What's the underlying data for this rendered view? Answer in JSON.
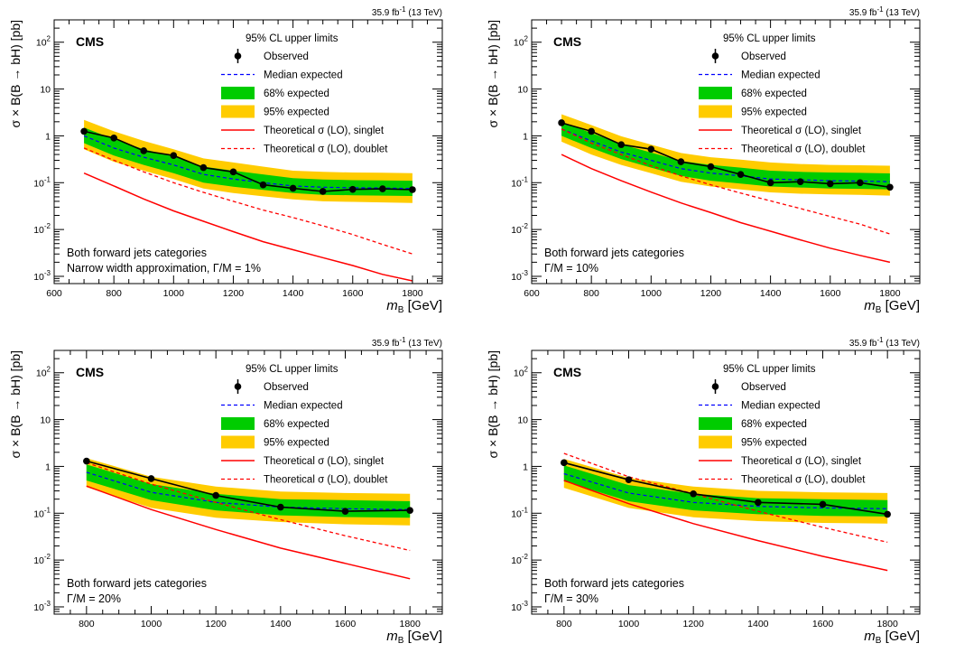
{
  "legend_style": {
    "band95_color": "#ffcc00",
    "band68_color": "#00cc00",
    "median_color": "#0000ff",
    "theory_color": "#ff0000",
    "observed_color": "#000000"
  },
  "chart_data": [
    {
      "type": "line",
      "lumi_label": "35.9 fb",
      "lumi_sup": "-1",
      "energy_label": " (13 TeV)",
      "experiment": "CMS",
      "legend_title": "95% CL upper limits",
      "legend": {
        "observed": "Observed",
        "median": "Median expected",
        "band68": "68% expected",
        "band95": "95% expected",
        "singlet": "Theoretical σ (LO), singlet",
        "doublet": "Theoretical σ (LO), doublet"
      },
      "ylabel": "σ × B(B → bH) [pb]",
      "xlabel_main": "m",
      "xlabel_sub": "B",
      "xlabel_unit": " [GeV]",
      "category_text": "Both forward jets categories",
      "width_text": "Narrow width approximation, Γ/M = 1%",
      "xlim": [
        600,
        1900
      ],
      "ylim": [
        0.0007,
        300
      ],
      "yscale": "log",
      "x_ticks": [
        600,
        800,
        1000,
        1200,
        1400,
        1600,
        1800
      ],
      "y_ticks": [
        {
          "v": 0.001,
          "b": "10",
          "e": "-3"
        },
        {
          "v": 0.01,
          "b": "10",
          "e": "-2"
        },
        {
          "v": 0.1,
          "b": "10",
          "e": "-1"
        },
        {
          "v": 1,
          "b": "1",
          "e": ""
        },
        {
          "v": 10,
          "b": "10",
          "e": ""
        },
        {
          "v": 100,
          "b": "10",
          "e": "2"
        }
      ],
      "x": [
        700,
        800,
        900,
        1000,
        1100,
        1200,
        1300,
        1400,
        1500,
        1600,
        1700,
        1800
      ],
      "observed": [
        1.25,
        0.9,
        0.48,
        0.38,
        0.21,
        0.17,
        0.09,
        0.076,
        0.065,
        0.072,
        0.074,
        0.071
      ],
      "median": [
        1.0,
        0.55,
        0.35,
        0.24,
        0.15,
        0.12,
        0.1,
        0.085,
        0.08,
        0.078,
        0.077,
        0.075
      ],
      "band68_low": [
        0.7,
        0.38,
        0.24,
        0.16,
        0.1,
        0.082,
        0.07,
        0.06,
        0.055,
        0.054,
        0.053,
        0.052
      ],
      "band68_high": [
        1.5,
        0.85,
        0.52,
        0.36,
        0.22,
        0.18,
        0.15,
        0.125,
        0.117,
        0.113,
        0.112,
        0.11
      ],
      "band95_low": [
        0.52,
        0.28,
        0.18,
        0.12,
        0.075,
        0.06,
        0.051,
        0.044,
        0.04,
        0.039,
        0.038,
        0.037
      ],
      "band95_high": [
        2.2,
        1.25,
        0.78,
        0.52,
        0.33,
        0.27,
        0.22,
        0.18,
        0.17,
        0.165,
        0.163,
        0.16
      ],
      "singlet": [
        0.16,
        0.085,
        0.045,
        0.025,
        0.015,
        0.009,
        0.0055,
        0.0037,
        0.0025,
        0.0017,
        0.0011,
        0.0008
      ],
      "doublet": [
        0.55,
        0.3,
        0.17,
        0.1,
        0.062,
        0.04,
        0.026,
        0.018,
        0.012,
        0.0078,
        0.0048,
        0.003
      ]
    },
    {
      "type": "line",
      "lumi_label": "35.9 fb",
      "lumi_sup": "-1",
      "energy_label": " (13 TeV)",
      "experiment": "CMS",
      "legend_title": "95% CL upper limits",
      "legend": {
        "observed": "Observed",
        "median": "Median expected",
        "band68": "68% expected",
        "band95": "95% expected",
        "singlet": "Theoretical σ (LO), singlet",
        "doublet": "Theoretical σ (LO), doublet"
      },
      "ylabel": "σ × B(B → bH) [pb]",
      "xlabel_main": "m",
      "xlabel_sub": "B",
      "xlabel_unit": " [GeV]",
      "category_text": "Both forward jets categories",
      "width_text": "Γ/M = 10%",
      "xlim": [
        600,
        1900
      ],
      "ylim": [
        0.0007,
        300
      ],
      "yscale": "log",
      "x_ticks": [
        600,
        800,
        1000,
        1200,
        1400,
        1600,
        1800
      ],
      "y_ticks": [
        {
          "v": 0.001,
          "b": "10",
          "e": "-3"
        },
        {
          "v": 0.01,
          "b": "10",
          "e": "-2"
        },
        {
          "v": 0.1,
          "b": "10",
          "e": "-1"
        },
        {
          "v": 1,
          "b": "1",
          "e": ""
        },
        {
          "v": 10,
          "b": "10",
          "e": ""
        },
        {
          "v": 100,
          "b": "10",
          "e": "2"
        }
      ],
      "x": [
        700,
        800,
        900,
        1000,
        1100,
        1200,
        1300,
        1400,
        1500,
        1600,
        1700,
        1800
      ],
      "observed": [
        1.9,
        1.25,
        0.65,
        0.52,
        0.28,
        0.22,
        0.15,
        0.1,
        0.105,
        0.095,
        0.1,
        0.08
      ],
      "median": [
        1.4,
        0.78,
        0.45,
        0.3,
        0.2,
        0.16,
        0.14,
        0.12,
        0.115,
        0.11,
        0.108,
        0.105
      ],
      "band68_low": [
        1.0,
        0.55,
        0.32,
        0.21,
        0.14,
        0.11,
        0.096,
        0.083,
        0.079,
        0.075,
        0.074,
        0.072
      ],
      "band68_high": [
        2.0,
        1.15,
        0.66,
        0.44,
        0.29,
        0.24,
        0.21,
        0.18,
        0.17,
        0.165,
        0.162,
        0.158
      ],
      "band95_low": [
        0.75,
        0.4,
        0.24,
        0.16,
        0.105,
        0.083,
        0.072,
        0.062,
        0.058,
        0.056,
        0.055,
        0.053
      ],
      "band95_high": [
        2.9,
        1.7,
        0.98,
        0.65,
        0.43,
        0.35,
        0.31,
        0.27,
        0.25,
        0.24,
        0.235,
        0.23
      ],
      "singlet": [
        0.4,
        0.2,
        0.11,
        0.063,
        0.037,
        0.023,
        0.014,
        0.0092,
        0.006,
        0.004,
        0.0028,
        0.002
      ],
      "doublet": [
        1.4,
        0.7,
        0.4,
        0.23,
        0.14,
        0.09,
        0.06,
        0.041,
        0.028,
        0.019,
        0.013,
        0.008
      ]
    },
    {
      "type": "line",
      "lumi_label": "35.9 fb",
      "lumi_sup": "-1",
      "energy_label": " (13 TeV)",
      "experiment": "CMS",
      "legend_title": "95% CL upper limits",
      "legend": {
        "observed": "Observed",
        "median": "Median expected",
        "band68": "68% expected",
        "band95": "95% expected",
        "singlet": "Theoretical σ (LO), singlet",
        "doublet": "Theoretical σ (LO), doublet"
      },
      "ylabel": "σ × B(B → bH) [pb]",
      "xlabel_main": "m",
      "xlabel_sub": "B",
      "xlabel_unit": " [GeV]",
      "category_text": "Both forward jets categories",
      "width_text": "Γ/M = 20%",
      "xlim": [
        700,
        1900
      ],
      "ylim": [
        0.0007,
        300
      ],
      "yscale": "log",
      "x_ticks": [
        800,
        1000,
        1200,
        1400,
        1600,
        1800
      ],
      "y_ticks": [
        {
          "v": 0.001,
          "b": "10",
          "e": "-3"
        },
        {
          "v": 0.01,
          "b": "10",
          "e": "-2"
        },
        {
          "v": 0.1,
          "b": "10",
          "e": "-1"
        },
        {
          "v": 1,
          "b": "1",
          "e": ""
        },
        {
          "v": 10,
          "b": "10",
          "e": ""
        },
        {
          "v": 100,
          "b": "10",
          "e": "2"
        }
      ],
      "x": [
        800,
        1000,
        1200,
        1400,
        1600,
        1800
      ],
      "observed": [
        1.3,
        0.55,
        0.24,
        0.135,
        0.11,
        0.115
      ],
      "median": [
        0.75,
        0.28,
        0.17,
        0.135,
        0.125,
        0.12
      ],
      "band68_low": [
        0.5,
        0.19,
        0.115,
        0.09,
        0.083,
        0.08
      ],
      "band68_high": [
        1.1,
        0.42,
        0.26,
        0.2,
        0.19,
        0.18
      ],
      "band95_low": [
        0.36,
        0.13,
        0.08,
        0.065,
        0.058,
        0.055
      ],
      "band95_high": [
        1.5,
        0.6,
        0.37,
        0.29,
        0.27,
        0.26
      ],
      "singlet": [
        0.38,
        0.12,
        0.045,
        0.018,
        0.0085,
        0.004
      ],
      "doublet": [
        1.2,
        0.42,
        0.17,
        0.073,
        0.033,
        0.016
      ]
    },
    {
      "type": "line",
      "lumi_label": "35.9 fb",
      "lumi_sup": "-1",
      "energy_label": " (13 TeV)",
      "experiment": "CMS",
      "legend_title": "95% CL upper limits",
      "legend": {
        "observed": "Observed",
        "median": "Median expected",
        "band68": "68% expected",
        "band95": "95% expected",
        "singlet": "Theoretical σ (LO), singlet",
        "doublet": "Theoretical σ (LO), doublet"
      },
      "ylabel": "σ × B(B → bH) [pb]",
      "xlabel_main": "m",
      "xlabel_sub": "B",
      "xlabel_unit": " [GeV]",
      "category_text": "Both forward jets categories",
      "width_text": "Γ/M = 30%",
      "xlim": [
        700,
        1900
      ],
      "ylim": [
        0.0007,
        300
      ],
      "yscale": "log",
      "x_ticks": [
        800,
        1000,
        1200,
        1400,
        1600,
        1800
      ],
      "y_ticks": [
        {
          "v": 0.001,
          "b": "10",
          "e": "-3"
        },
        {
          "v": 0.01,
          "b": "10",
          "e": "-2"
        },
        {
          "v": 0.1,
          "b": "10",
          "e": "-1"
        },
        {
          "v": 1,
          "b": "1",
          "e": ""
        },
        {
          "v": 10,
          "b": "10",
          "e": ""
        },
        {
          "v": 100,
          "b": "10",
          "e": "2"
        }
      ],
      "x": [
        800,
        1000,
        1200,
        1400,
        1600,
        1800
      ],
      "observed": [
        1.2,
        0.52,
        0.26,
        0.17,
        0.155,
        0.095
      ],
      "median": [
        0.7,
        0.27,
        0.17,
        0.14,
        0.13,
        0.125
      ],
      "band68_low": [
        0.48,
        0.18,
        0.115,
        0.095,
        0.088,
        0.085
      ],
      "band68_high": [
        1.05,
        0.4,
        0.26,
        0.21,
        0.2,
        0.19
      ],
      "band95_low": [
        0.35,
        0.13,
        0.082,
        0.068,
        0.062,
        0.06
      ],
      "band95_high": [
        1.45,
        0.57,
        0.37,
        0.3,
        0.28,
        0.27
      ],
      "singlet": [
        0.5,
        0.16,
        0.06,
        0.026,
        0.012,
        0.006
      ],
      "doublet": [
        1.9,
        0.6,
        0.26,
        0.11,
        0.05,
        0.024
      ]
    }
  ]
}
